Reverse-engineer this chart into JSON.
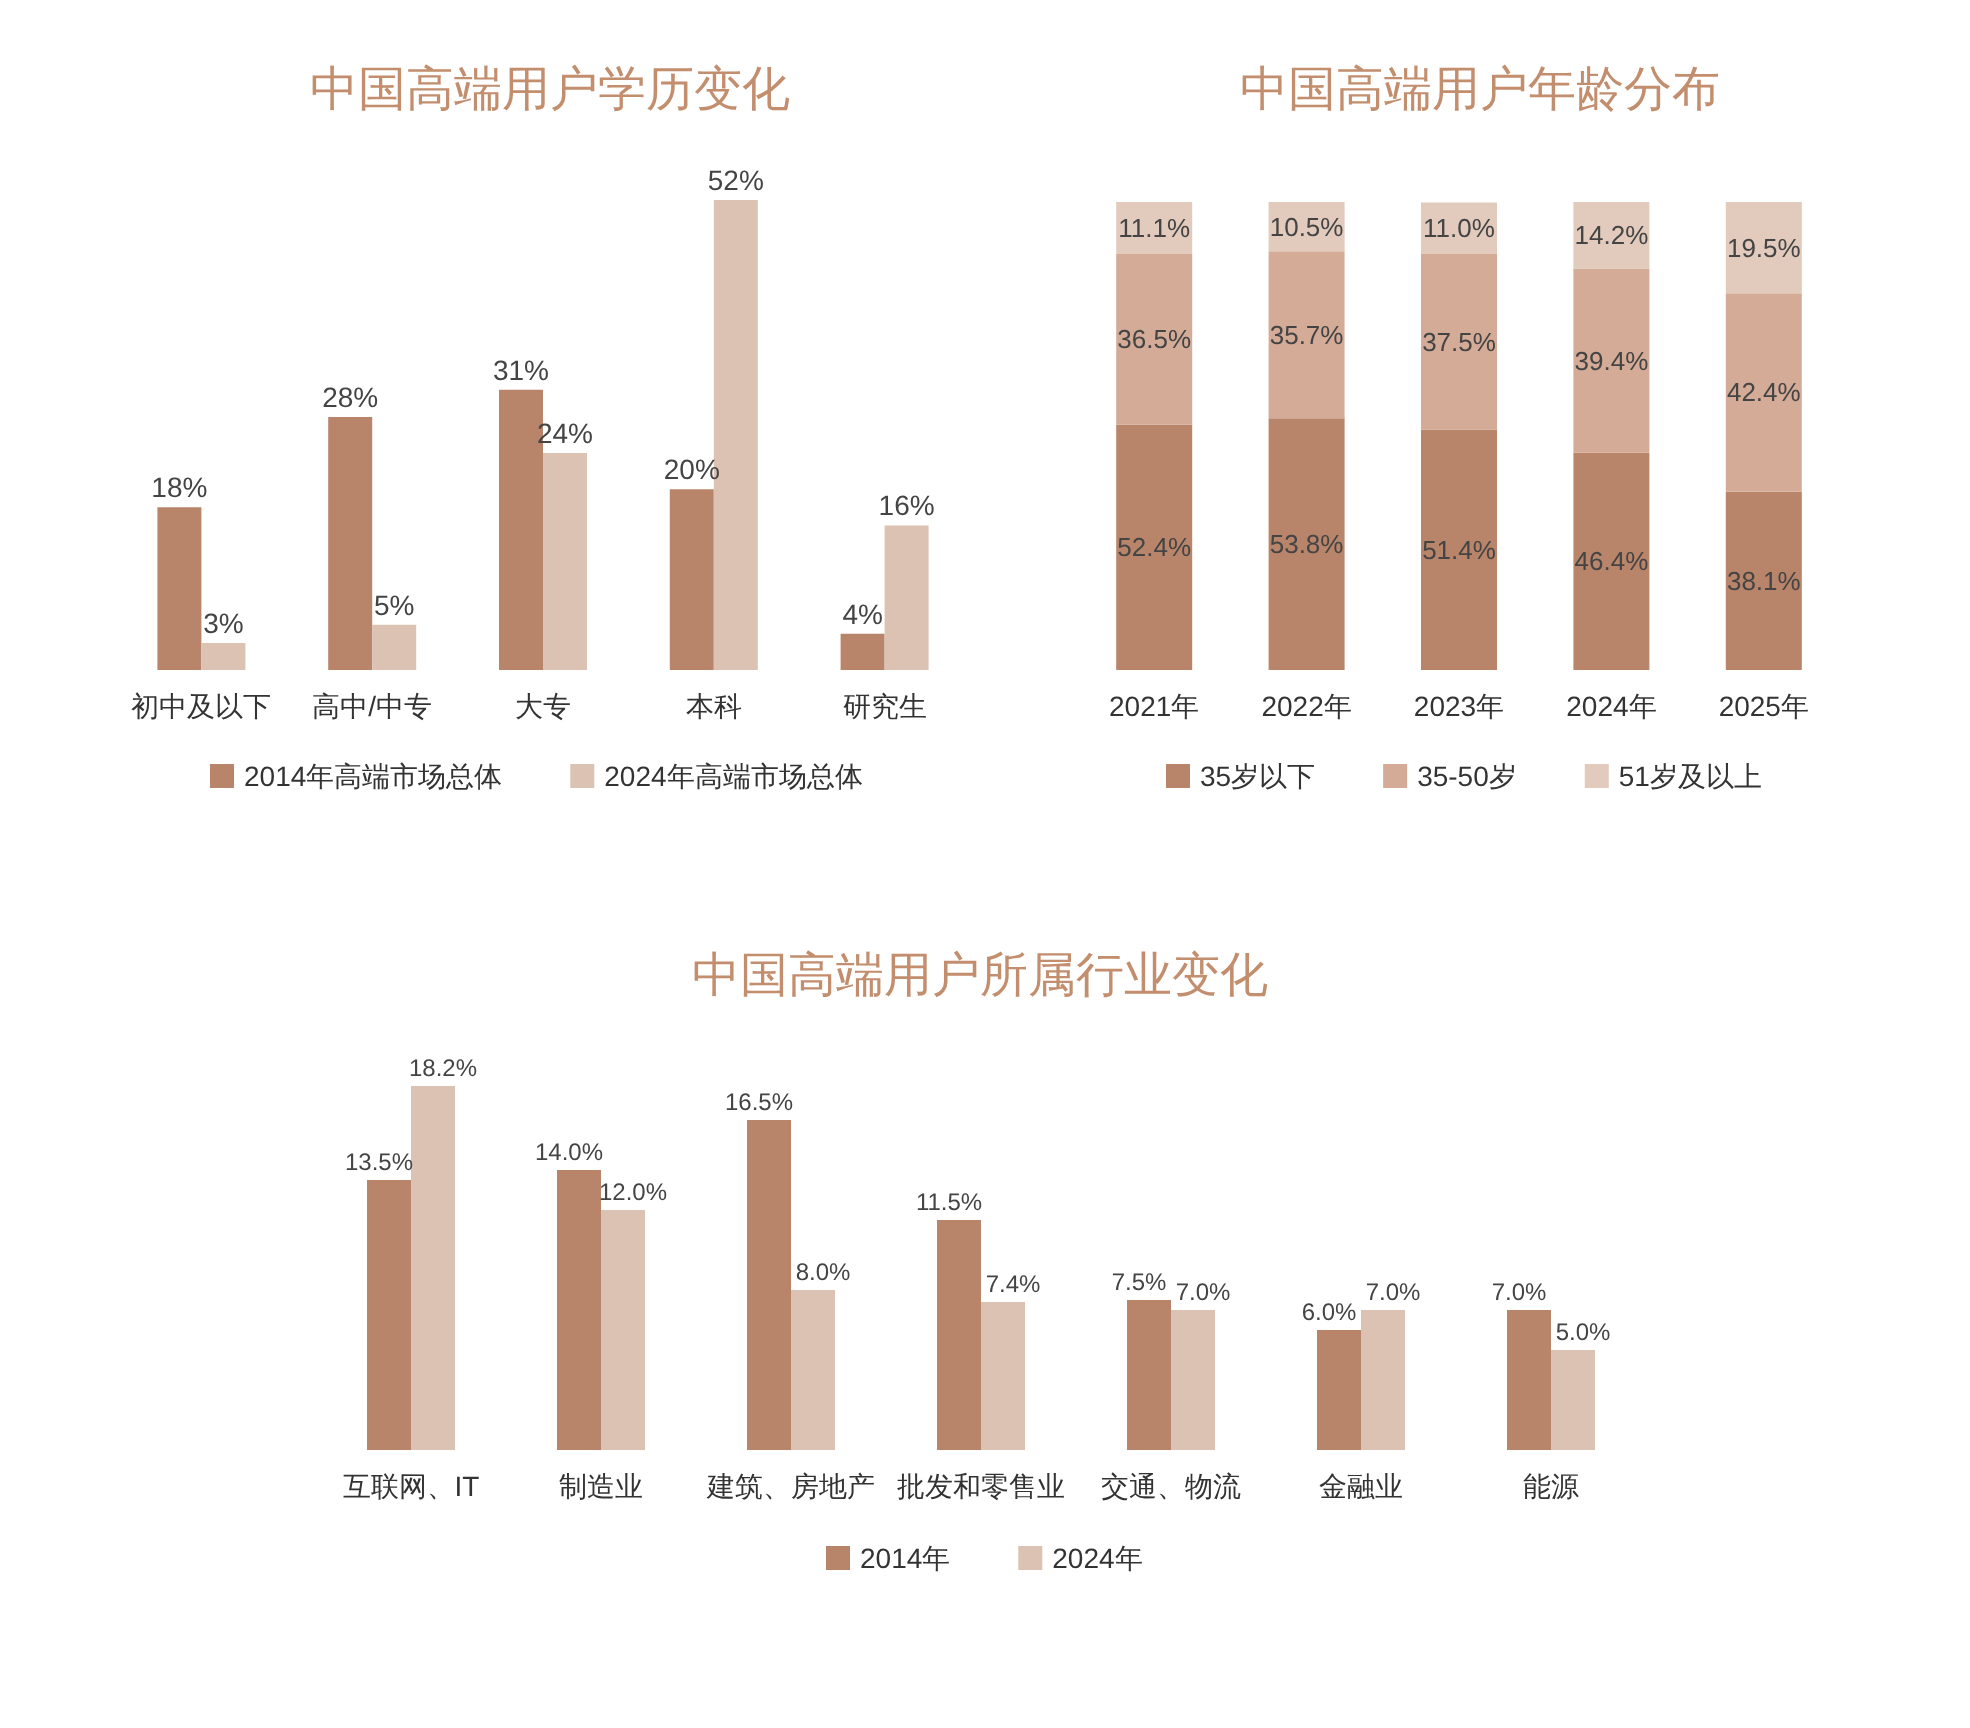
{
  "chart_data": [
    {
      "type": "bar",
      "title": "中国高端用户学历变化",
      "categories": [
        "初中及以下",
        "高中/中专",
        "大专",
        "本科",
        "研究生"
      ],
      "series": [
        {
          "name": "2014年高端市场总体",
          "color": "#b9856a",
          "values": [
            18,
            28,
            31,
            20,
            4
          ],
          "value_labels": [
            "18%",
            "28%",
            "31%",
            "20%",
            "4%"
          ]
        },
        {
          "name": "2024年高端市场总体",
          "color": "#dcc2b2",
          "values": [
            3,
            5,
            24,
            52,
            16
          ],
          "value_labels": [
            "3%",
            "5%",
            "24%",
            "52%",
            "16%"
          ]
        }
      ],
      "legend": "bottom",
      "grid": false,
      "tick_labels": "x"
    },
    {
      "type": "bar",
      "title": "中国高端用户年龄分布",
      "categories": [
        "2021年",
        "2022年",
        "2023年",
        "2024年",
        "2025年"
      ],
      "stacked": true,
      "series": [
        {
          "name": "35岁以下",
          "color": "#b9856a",
          "values": [
            52.4,
            53.8,
            51.4,
            46.4,
            38.1
          ],
          "value_labels": [
            "52.4%",
            "53.8%",
            "51.4%",
            "46.4%",
            "38.1%"
          ]
        },
        {
          "name": "35-50岁",
          "color": "#d3ab97",
          "values": [
            36.5,
            35.7,
            37.5,
            39.4,
            42.4
          ],
          "value_labels": [
            "36.5%",
            "35.7%",
            "37.5%",
            "39.4%",
            "42.4%"
          ]
        },
        {
          "name": "51岁及以上",
          "color": "#e2cbbd",
          "values": [
            11.1,
            10.5,
            11.0,
            14.2,
            19.5
          ],
          "value_labels": [
            "11.1%",
            "10.5%",
            "11.0%",
            "14.2%",
            "19.5%"
          ]
        }
      ],
      "legend": "bottom",
      "grid": false,
      "tick_labels": "x"
    },
    {
      "type": "bar",
      "title": "中国高端用户所属行业变化",
      "categories": [
        "互联网、IT",
        "制造业",
        "建筑、房地产",
        "批发和零售业",
        "交通、物流",
        "金融业",
        "能源"
      ],
      "series": [
        {
          "name": "2014年",
          "color": "#b9856a",
          "values": [
            13.5,
            14.0,
            16.5,
            11.5,
            7.5,
            6.0,
            7.0
          ],
          "value_labels": [
            "13.5%",
            "14.0%",
            "16.5%",
            "11.5%",
            "7.5%",
            "6.0%",
            "7.0%"
          ]
        },
        {
          "name": "2024年",
          "color": "#dcc2b2",
          "values": [
            18.2,
            12.0,
            8.0,
            7.4,
            7.0,
            7.0,
            5.0
          ],
          "value_labels": [
            "18.2%",
            "12.0%",
            "8.0%",
            "7.4%",
            "7.0%",
            "7.0%",
            "5.0%"
          ]
        }
      ],
      "legend": "bottom",
      "grid": false,
      "tick_labels": "x"
    }
  ]
}
